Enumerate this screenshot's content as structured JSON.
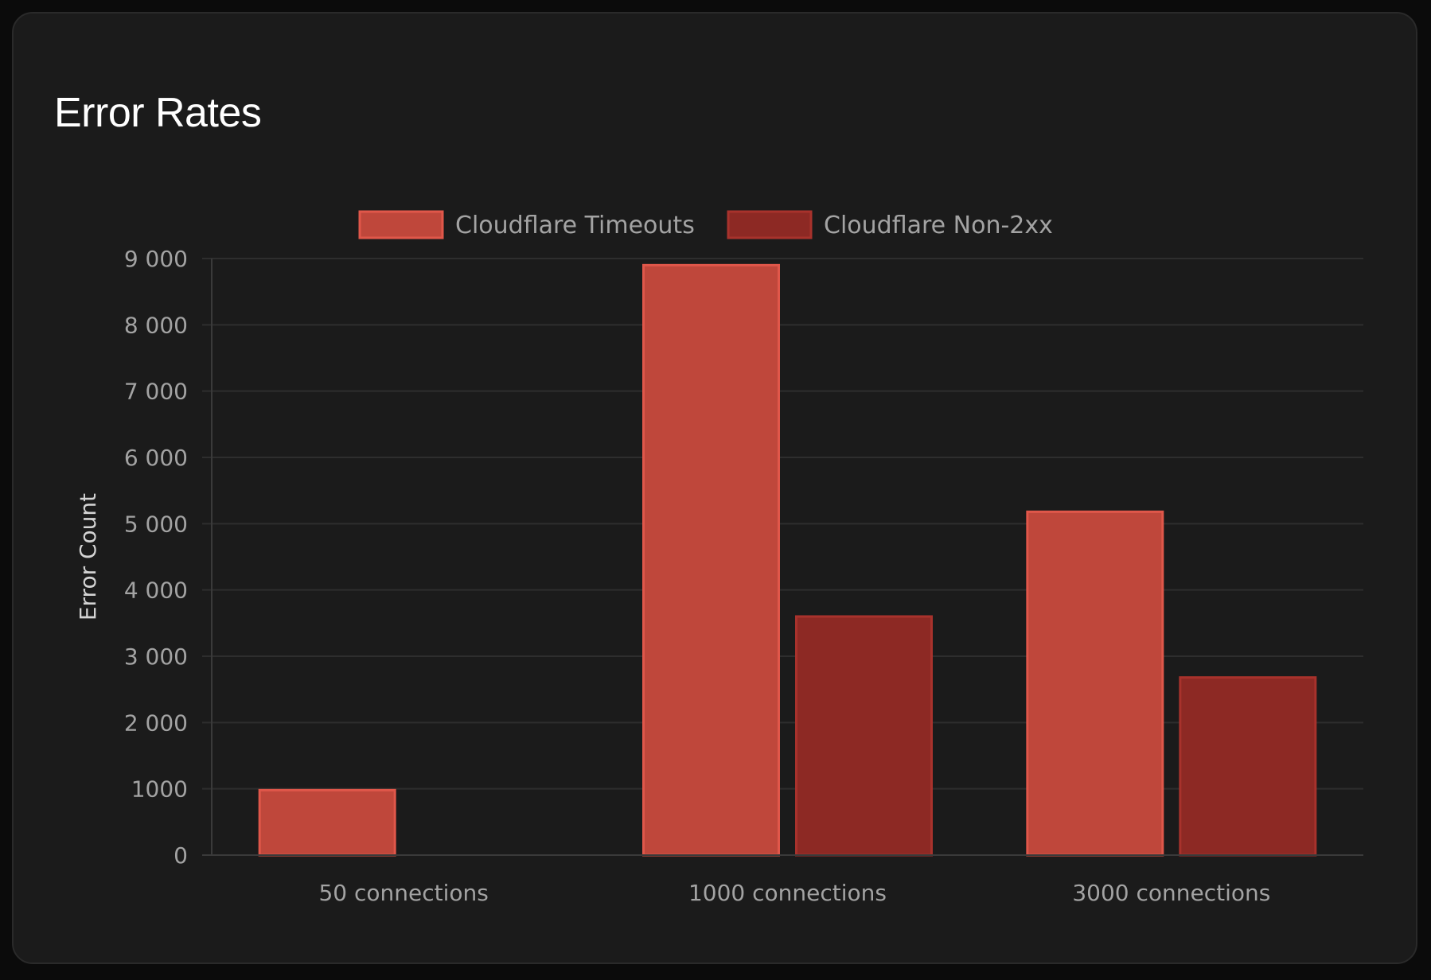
{
  "card": {
    "title": "Error Rates"
  },
  "chart_data": {
    "type": "bar",
    "title": "Error Rates",
    "xlabel": "",
    "ylabel": "Error Count",
    "categories": [
      "50 connections",
      "1000 connections",
      "3000 connections"
    ],
    "series": [
      {
        "name": "Cloudflare Timeouts",
        "values": [
          980,
          8900,
          5180
        ],
        "fill": "#bf473b",
        "stroke": "#e0574a"
      },
      {
        "name": "Cloudflare Non-2xx",
        "values": [
          0,
          3600,
          2680
        ],
        "fill": "#8d2924",
        "stroke": "#a8322c"
      }
    ],
    "ylim": [
      0,
      9000
    ],
    "yticks": [
      0,
      1000,
      2000,
      3000,
      4000,
      5000,
      6000,
      7000,
      8000,
      9000
    ],
    "ytick_labels": [
      "0",
      "1000",
      "2 000",
      "3 000",
      "4 000",
      "5 000",
      "6 000",
      "7 000",
      "8 000",
      "9 000"
    ],
    "grid": true,
    "legend_position": "top"
  }
}
